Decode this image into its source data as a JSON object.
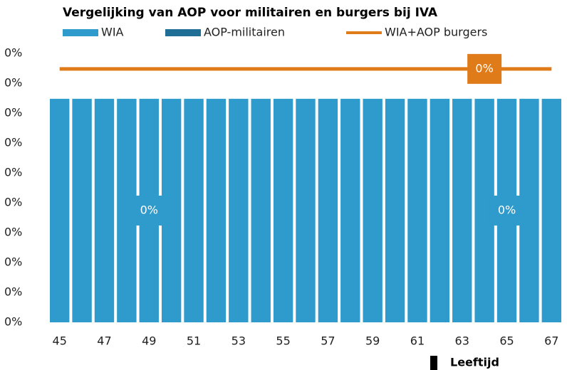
{
  "chart_data": {
    "type": "bar",
    "title": "Vergelijking van AOP voor militairen en burgers bij IVA",
    "x_label": "Leeftijd",
    "categories": [
      "45",
      null,
      "47",
      null,
      "49",
      null,
      "51",
      null,
      "53",
      null,
      "55",
      null,
      "57",
      null,
      "59",
      null,
      "61",
      null,
      "63",
      null,
      "65",
      null,
      "67"
    ],
    "series": [
      {
        "name": "WIA",
        "color": "#2e9bcc",
        "type": "bar",
        "values": [
          0.374,
          0.374,
          0.374,
          0.374,
          0.374,
          0.374,
          0.374,
          0.374,
          0.374,
          0.374,
          0.374,
          0.374,
          0.374,
          0.374,
          0.374,
          0.374,
          0.374,
          0.374,
          0.374,
          0.374,
          0.374,
          0.374,
          0.374
        ],
        "value_labels": [
          null,
          null,
          null,
          null,
          "0%",
          null,
          null,
          null,
          null,
          null,
          null,
          null,
          null,
          null,
          null,
          null,
          null,
          null,
          null,
          null,
          "0%",
          null,
          null
        ]
      },
      {
        "name": "AOP-militairen",
        "color": "#1f6e96",
        "type": "bar",
        "values": [
          0,
          0,
          0,
          0,
          0,
          0,
          0,
          0,
          0,
          0,
          0,
          0,
          0,
          0,
          0,
          0,
          0,
          0,
          0,
          0,
          0,
          0,
          0
        ]
      },
      {
        "name": "WIA+AOP burgers",
        "color": "#e07b1a",
        "type": "line",
        "values": [
          0.424,
          0.424,
          0.424,
          0.424,
          0.424,
          0.424,
          0.424,
          0.424,
          0.424,
          0.424,
          0.424,
          0.424,
          0.424,
          0.424,
          0.424,
          0.424,
          0.424,
          0.424,
          0.424,
          0.424,
          0.424,
          0.424,
          0.424
        ],
        "value_labels": [
          null,
          null,
          null,
          null,
          null,
          null,
          null,
          null,
          null,
          null,
          null,
          null,
          null,
          null,
          null,
          null,
          null,
          null,
          null,
          "0%",
          null,
          null,
          null
        ]
      }
    ],
    "stacked": true,
    "ylim": [
      0,
      0.45
    ],
    "yticks": [
      {
        "value": 0,
        "label": "0%"
      },
      {
        "value": 0.05,
        "label": "0%"
      },
      {
        "value": 0.1,
        "label": "0%"
      },
      {
        "value": 0.15,
        "label": "0%"
      },
      {
        "value": 0.2,
        "label": "0%"
      },
      {
        "value": 0.25,
        "label": "0%"
      },
      {
        "value": 0.3,
        "label": "0%"
      },
      {
        "value": 0.35,
        "label": "0%"
      },
      {
        "value": 0.4,
        "label": "0%"
      },
      {
        "value": 0.45,
        "label": "0%"
      }
    ],
    "grid": false
  }
}
